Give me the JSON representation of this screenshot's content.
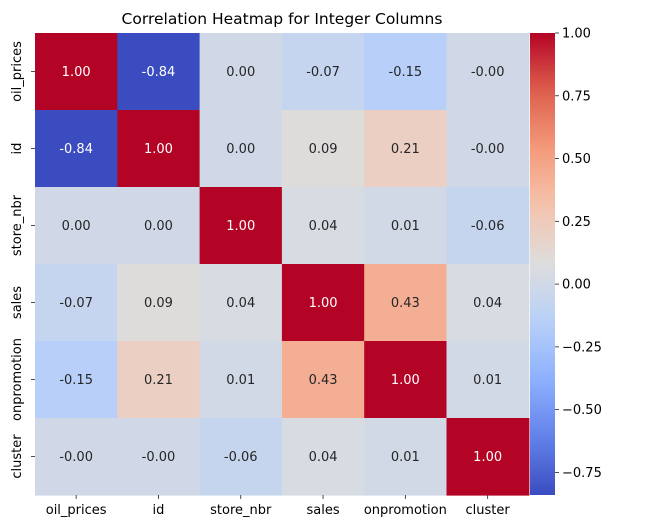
{
  "chart_data": {
    "type": "heatmap",
    "title": "Correlation Heatmap for Integer Columns",
    "xlabel": "",
    "ylabel": "",
    "x_categories": [
      "oil_prices",
      "id",
      "store_nbr",
      "sales",
      "onpromotion",
      "cluster"
    ],
    "y_categories": [
      "oil_prices",
      "id",
      "store_nbr",
      "sales",
      "onpromotion",
      "cluster"
    ],
    "values": [
      [
        1.0,
        -0.84,
        0.0,
        -0.07,
        -0.15,
        -0.0
      ],
      [
        -0.84,
        1.0,
        0.0,
        0.09,
        0.21,
        -0.0
      ],
      [
        0.0,
        0.0,
        1.0,
        0.04,
        0.01,
        -0.06
      ],
      [
        -0.07,
        0.09,
        0.04,
        1.0,
        0.43,
        0.04
      ],
      [
        -0.15,
        0.21,
        0.01,
        0.43,
        1.0,
        0.01
      ],
      [
        -0.0,
        -0.0,
        -0.06,
        0.04,
        0.01,
        1.0
      ]
    ],
    "cell_labels": [
      [
        "1.00",
        "-0.84",
        "0.00",
        "-0.07",
        "-0.15",
        "-0.00"
      ],
      [
        "-0.84",
        "1.00",
        "0.00",
        "0.09",
        "0.21",
        "-0.00"
      ],
      [
        "0.00",
        "0.00",
        "1.00",
        "0.04",
        "0.01",
        "-0.06"
      ],
      [
        "-0.07",
        "0.09",
        "0.04",
        "1.00",
        "0.43",
        "0.04"
      ],
      [
        "-0.15",
        "0.21",
        "0.01",
        "0.43",
        "1.00",
        "0.01"
      ],
      [
        "-0.00",
        "-0.00",
        "-0.06",
        "0.04",
        "0.01",
        "1.00"
      ]
    ],
    "colormap": "coolwarm",
    "color_range": [
      -0.84,
      1.0
    ],
    "colorbar_ticks": [
      1.0,
      0.75,
      0.5,
      0.25,
      0.0,
      -0.25,
      -0.5,
      -0.75
    ],
    "colorbar_tick_labels": [
      "1.00",
      "0.75",
      "0.50",
      "0.25",
      "0.00",
      "−0.25",
      "−0.50",
      "−0.75"
    ],
    "grid": false,
    "legend": "colorbar-right"
  }
}
